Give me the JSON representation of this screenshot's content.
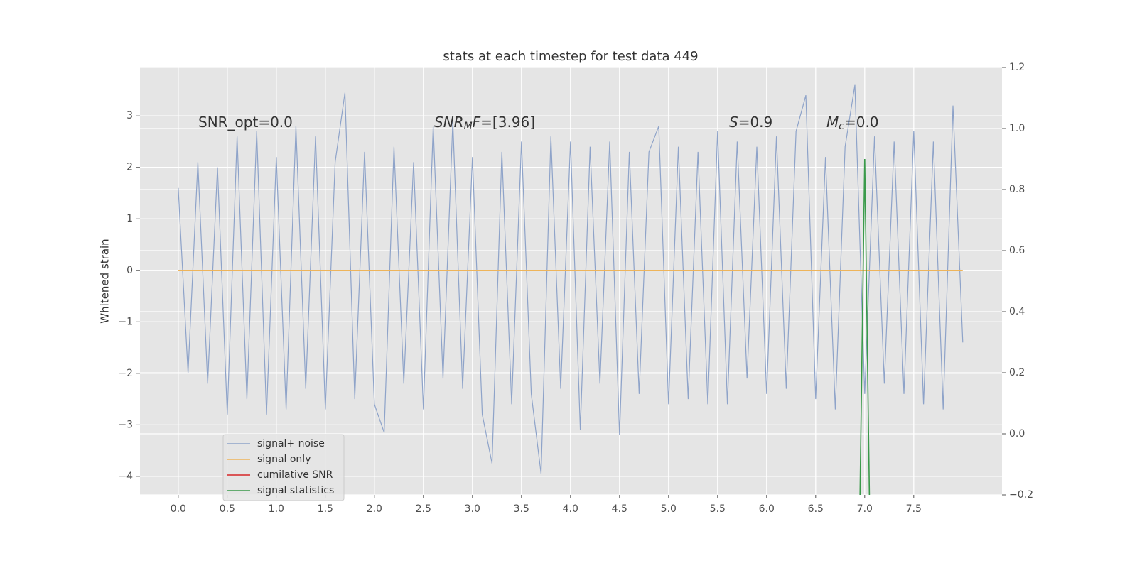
{
  "chart_data": {
    "type": "line",
    "title": "stats at each timestep for test data 449",
    "ylabel": "Whitened strain",
    "xlim": [
      -0.39,
      8.4
    ],
    "ylim": [
      -4.36,
      3.94
    ],
    "y2lim": [
      -0.2,
      1.2
    ],
    "xticks": [
      {
        "value": 0,
        "label": "0.0"
      },
      0.5,
      {
        "value": 1,
        "label": "1.0"
      },
      1.5,
      {
        "value": 2,
        "label": "2.0"
      },
      2.5,
      {
        "value": 3,
        "label": "3.0"
      },
      3.5,
      {
        "value": 4,
        "label": "4.0"
      },
      4.5,
      {
        "value": 5,
        "label": "5.0"
      },
      5.5,
      {
        "value": 6,
        "label": "6.0"
      },
      6.5,
      {
        "value": 7,
        "label": "7.0"
      },
      7.5
    ],
    "yticks": [
      {
        "value": -4,
        "label": "−4"
      },
      {
        "value": -3,
        "label": "−3"
      },
      {
        "value": -2,
        "label": "−2"
      },
      {
        "value": -1,
        "label": "−1"
      },
      0,
      1,
      2,
      3
    ],
    "y2ticks": [
      {
        "value": -0.2,
        "label": "−0.2"
      },
      {
        "value": 0,
        "label": "0.0"
      },
      0.2,
      0.4,
      0.6,
      0.8,
      {
        "value": 1,
        "label": "1.0"
      },
      1.2
    ],
    "grid": true,
    "legend": "lower left",
    "series": [
      {
        "name": "signal+ noise",
        "color": "#8ea3c9",
        "x": [
          0,
          0.1,
          0.2,
          0.3,
          0.4,
          0.5,
          0.6,
          0.7,
          0.8,
          0.9,
          1.0,
          1.1,
          1.2,
          1.3,
          1.4,
          1.5,
          1.6,
          1.7,
          1.8,
          1.9,
          2.0,
          2.1,
          2.2,
          2.3,
          2.4,
          2.5,
          2.6,
          2.7,
          2.8,
          2.9,
          3.0,
          3.1,
          3.2,
          3.3,
          3.4,
          3.5,
          3.6,
          3.7,
          3.8,
          3.9,
          4.0,
          4.1,
          4.2,
          4.3,
          4.4,
          4.5,
          4.6,
          4.7,
          4.8,
          4.9,
          5.0,
          5.1,
          5.2,
          5.3,
          5.4,
          5.5,
          5.6,
          5.7,
          5.8,
          5.9,
          6.0,
          6.1,
          6.2,
          6.3,
          6.4,
          6.5,
          6.6,
          6.7,
          6.8,
          6.9,
          7.0,
          7.1,
          7.2,
          7.3,
          7.4,
          7.5,
          7.6,
          7.7,
          7.8,
          7.9,
          8.0
        ],
        "values": [
          1.6,
          -2.0,
          2.1,
          -2.2,
          2.0,
          -2.8,
          2.6,
          -2.5,
          2.7,
          -2.8,
          2.2,
          -2.7,
          2.8,
          -2.3,
          2.6,
          -2.7,
          2.1,
          3.45,
          -2.5,
          2.3,
          -2.6,
          -3.15,
          2.4,
          -2.2,
          2.1,
          -2.7,
          2.8,
          -2.1,
          2.9,
          -2.3,
          2.2,
          -2.8,
          -3.75,
          2.3,
          -2.6,
          2.5,
          -2.4,
          -3.95,
          2.6,
          -2.3,
          2.5,
          -3.1,
          2.4,
          -2.2,
          2.5,
          -3.2,
          2.3,
          -2.4,
          2.3,
          2.8,
          -2.6,
          2.4,
          -2.5,
          2.3,
          -2.6,
          2.7,
          -2.6,
          2.5,
          -2.1,
          2.4,
          -2.4,
          2.6,
          -2.3,
          2.7,
          3.4,
          -2.5,
          2.2,
          -2.7,
          2.4,
          3.6,
          -2.4,
          2.6,
          -2.2,
          2.5,
          -2.4,
          2.7,
          -2.6,
          2.5,
          -2.7,
          3.2,
          -1.4
        ]
      },
      {
        "name": "signal only",
        "color": "#eeb45a",
        "x": [
          0,
          8.0
        ],
        "values": [
          0,
          0
        ]
      },
      {
        "name": "cumilative SNR",
        "color": "#d62728",
        "x": [
          0,
          8.0
        ],
        "values": [
          null,
          null
        ]
      },
      {
        "name": "signal statistics",
        "color": "#3a9a4a",
        "axis": "y2",
        "x": [
          6.95,
          7.0,
          7.05
        ],
        "values": [
          -0.25,
          0.9,
          -0.25
        ]
      }
    ],
    "annotations": [
      [
        {
          "text": "SNR_opt=0.0"
        }
      ],
      [
        {
          "text": "SNR",
          "italic": true
        },
        {
          "text": "M",
          "italic": true,
          "sub": true
        },
        {
          "text": "F",
          "italic": true
        },
        {
          "text": "=[3.96]"
        }
      ],
      [
        {
          "text": "S",
          "italic": true
        },
        {
          "text": "=0.9"
        }
      ],
      [
        {
          "text": "M",
          "italic": true
        },
        {
          "text": "c",
          "italic": true,
          "sub": true
        },
        {
          "text": "=0.0"
        }
      ]
    ]
  }
}
